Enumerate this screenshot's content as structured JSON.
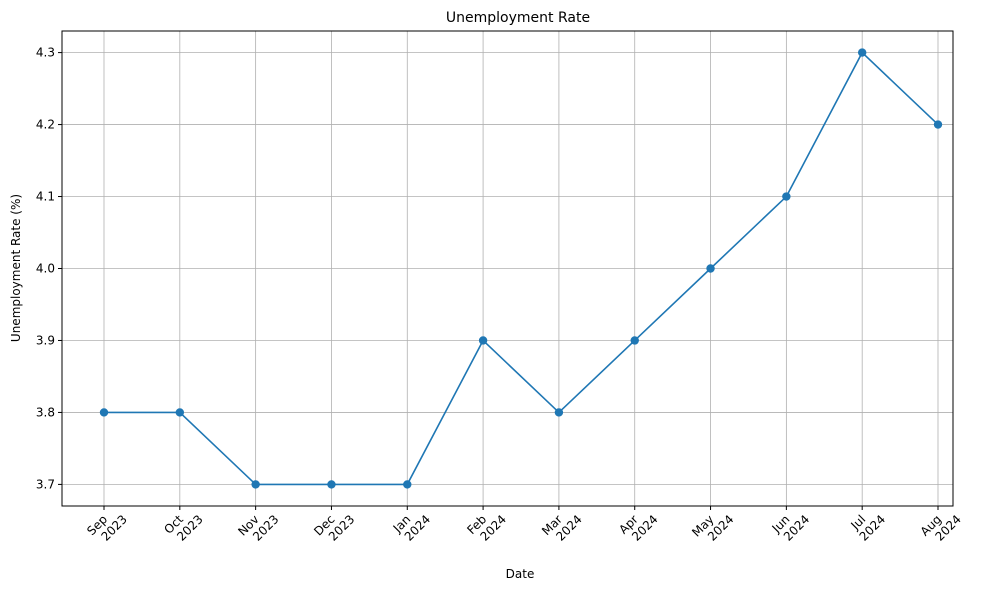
{
  "chart_data": {
    "type": "line",
    "title": "Unemployment Rate",
    "xlabel": "Date",
    "ylabel": "Unemployment Rate (%)",
    "x": [
      "2023-09",
      "2023-10",
      "2023-11",
      "2023-12",
      "2024-01",
      "2024-02",
      "2024-03",
      "2024-04",
      "2024-05",
      "2024-06",
      "2024-07",
      "2024-08"
    ],
    "x_tick_labels": [
      [
        "Sep",
        "2023"
      ],
      [
        "Oct",
        "2023"
      ],
      [
        "Nov",
        "2023"
      ],
      [
        "Dec",
        "2023"
      ],
      [
        "Jan",
        "2024"
      ],
      [
        "Feb",
        "2024"
      ],
      [
        "Mar",
        "2024"
      ],
      [
        "Apr",
        "2024"
      ],
      [
        "May",
        "2024"
      ],
      [
        "Jun",
        "2024"
      ],
      [
        "Jul",
        "2024"
      ],
      [
        "Aug",
        "2024"
      ]
    ],
    "series": [
      {
        "values": [
          3.8,
          3.8,
          3.7,
          3.7,
          3.7,
          3.9,
          3.8,
          3.9,
          4.0,
          4.1,
          4.3,
          4.2
        ]
      }
    ],
    "y_ticks": [
      "3.7",
      "3.8",
      "3.9",
      "4.0",
      "4.1",
      "4.2",
      "4.3"
    ],
    "ylim": [
      3.67,
      4.33
    ],
    "grid": true,
    "line_color": "#1f77b4",
    "marker": "circle"
  }
}
